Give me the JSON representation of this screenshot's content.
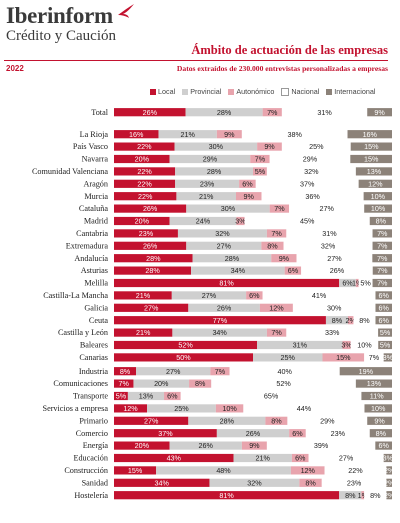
{
  "brand": {
    "name": "Iberinform",
    "tagline": "Crédito y Caución"
  },
  "header": {
    "title": "Ámbito de actuación de las empresas",
    "year": "2022",
    "subtitle": "Datos extraídos de 230.000 entrevistas personalizadas a empresas"
  },
  "colors": {
    "Local": "#c3122f",
    "Provincial": "#cfcfcf",
    "Autonómico": "#e8a4ad",
    "Nacional": "#ffffff",
    "Internacional": "#8c8279"
  },
  "chart_data": {
    "type": "bar",
    "orientation": "horizontal",
    "stacked": true,
    "percent_scale": [
      0,
      100
    ],
    "series": [
      {
        "name": "Local"
      },
      {
        "name": "Provincial"
      },
      {
        "name": "Autonómico"
      },
      {
        "name": "Nacional"
      },
      {
        "name": "Internacional"
      }
    ],
    "groups": [
      {
        "rows": [
          {
            "label": "Total",
            "values": [
              26,
              28,
              7,
              31,
              9
            ]
          }
        ]
      },
      {
        "rows": [
          {
            "label": "La Rioja",
            "values": [
              16,
              21,
              9,
              38,
              16
            ]
          },
          {
            "label": "País Vasco",
            "values": [
              22,
              30,
              9,
              25,
              15
            ]
          },
          {
            "label": "Navarra",
            "values": [
              20,
              29,
              7,
              29,
              15
            ]
          },
          {
            "label": "Comunidad Valenciana",
            "values": [
              22,
              28,
              5,
              32,
              13
            ]
          },
          {
            "label": "Aragón",
            "values": [
              22,
              23,
              6,
              37,
              12
            ]
          },
          {
            "label": "Murcia",
            "values": [
              22,
              21,
              9,
              36,
              10
            ]
          },
          {
            "label": "Cataluña",
            "values": [
              26,
              30,
              7,
              27,
              10
            ]
          },
          {
            "label": "Madrid",
            "values": [
              20,
              24,
              3,
              45,
              8
            ]
          },
          {
            "label": "Cantabria",
            "values": [
              23,
              32,
              7,
              31,
              7
            ]
          },
          {
            "label": "Extremadura",
            "values": [
              26,
              27,
              8,
              32,
              7
            ]
          },
          {
            "label": "Andalucía",
            "values": [
              28,
              28,
              9,
              27,
              7
            ]
          },
          {
            "label": "Asturias",
            "values": [
              28,
              34,
              6,
              26,
              7
            ]
          },
          {
            "label": "Melilla",
            "values": [
              81,
              6,
              1,
              5,
              7
            ]
          },
          {
            "label": "Castilla-La Mancha",
            "values": [
              21,
              27,
              6,
              41,
              6
            ]
          },
          {
            "label": "Galicia",
            "values": [
              27,
              26,
              12,
              30,
              6
            ]
          },
          {
            "label": "Ceuta",
            "values": [
              77,
              8,
              2,
              8,
              6
            ]
          },
          {
            "label": "Castilla y León",
            "values": [
              21,
              34,
              7,
              33,
              5
            ]
          },
          {
            "label": "Baleares",
            "values": [
              52,
              31,
              3,
              10,
              5
            ]
          },
          {
            "label": "Canarias",
            "values": [
              50,
              25,
              15,
              7,
              3
            ]
          }
        ]
      },
      {
        "rows": [
          {
            "label": "Industria",
            "values": [
              8,
              27,
              7,
              40,
              19
            ]
          },
          {
            "label": "Comunicaciones",
            "values": [
              7,
              20,
              8,
              52,
              13
            ]
          },
          {
            "label": "Transporte",
            "values": [
              5,
              13,
              6,
              65,
              11
            ]
          },
          {
            "label": "Servicios a empresa",
            "values": [
              12,
              25,
              10,
              44,
              10
            ]
          },
          {
            "label": "Primario",
            "values": [
              27,
              28,
              8,
              29,
              9
            ]
          },
          {
            "label": "Comercio",
            "values": [
              37,
              26,
              6,
              23,
              8
            ]
          },
          {
            "label": "Energía",
            "values": [
              20,
              26,
              9,
              39,
              6
            ]
          },
          {
            "label": "Educación",
            "values": [
              43,
              21,
              6,
              27,
              3
            ]
          },
          {
            "label": "Construcción",
            "values": [
              15,
              48,
              12,
              22,
              2
            ]
          },
          {
            "label": "Sanidad",
            "values": [
              34,
              32,
              8,
              23,
              2
            ]
          },
          {
            "label": "Hostelería",
            "values": [
              81,
              8,
              1,
              8,
              2
            ]
          }
        ]
      }
    ]
  }
}
